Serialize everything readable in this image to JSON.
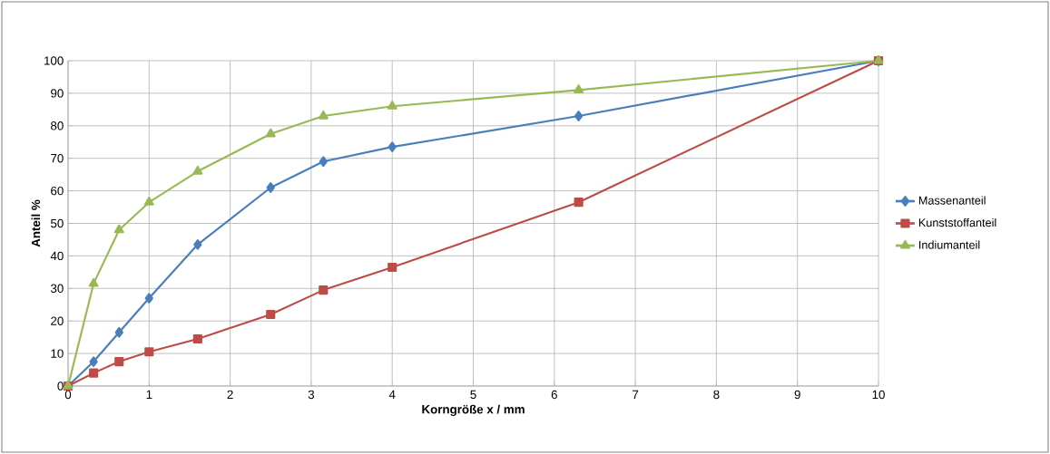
{
  "chart_data": {
    "type": "line",
    "xlabel": "Korngröße x / mm",
    "ylabel": "Anteil %",
    "x": [
      0,
      0.315,
      0.63,
      1,
      1.6,
      2.5,
      3.15,
      4,
      6.3,
      10
    ],
    "series": [
      {
        "name": "Massenanteil",
        "color": "#4a7ebb",
        "marker": "diamond",
        "values": [
          0,
          7.5,
          16.5,
          27,
          43.5,
          61,
          69,
          73.5,
          83,
          100
        ]
      },
      {
        "name": "Kunststoffanteil",
        "color": "#be4b48",
        "marker": "square",
        "values": [
          0,
          4,
          7.5,
          10.5,
          14.5,
          22,
          29.5,
          36.5,
          56.5,
          100
        ]
      },
      {
        "name": "Indiumanteil",
        "color": "#98b954",
        "marker": "triangle",
        "values": [
          0,
          31.5,
          48,
          56.5,
          66,
          77.5,
          83,
          86,
          91,
          100
        ]
      }
    ],
    "xlim": [
      0,
      10
    ],
    "xticks": [
      0,
      1,
      2,
      3,
      4,
      5,
      6,
      7,
      8,
      9,
      10
    ],
    "ylim": [
      0,
      100
    ],
    "yticks": [
      0,
      10,
      20,
      30,
      40,
      50,
      60,
      70,
      80,
      90,
      100
    ],
    "grid": true,
    "legend": "right",
    "line_style": "solid"
  }
}
